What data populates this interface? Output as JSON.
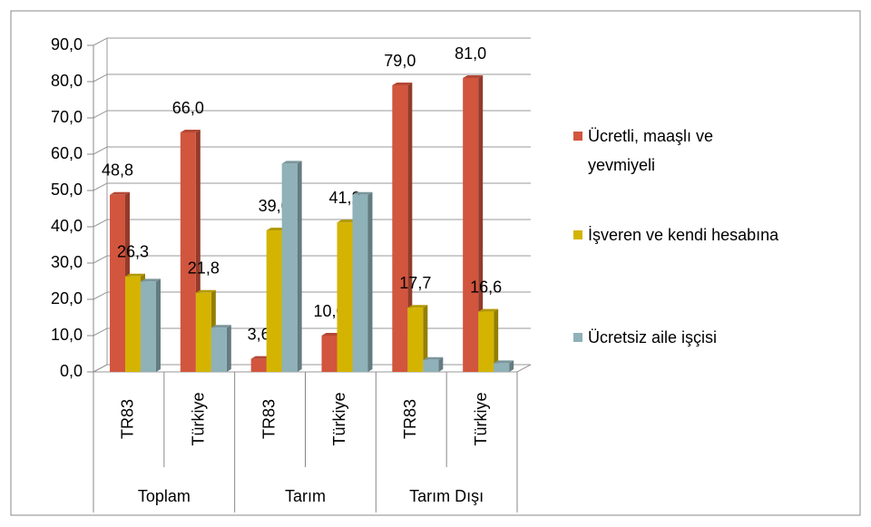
{
  "chart_data": {
    "type": "bar3d",
    "categories": [
      "TR83",
      "Türkiye",
      "TR83",
      "Türkiye",
      "TR83",
      "Türkiye"
    ],
    "groups": [
      "Toplam",
      "Tarım",
      "Tarım Dışı"
    ],
    "series": [
      {
        "name": "Ücretli, maaşlı ve yevmiyeli",
        "color": "#d2553e",
        "values": [
          48.8,
          66.0,
          3.6,
          10.0,
          79.0,
          81.0
        ],
        "value_labels": [
          "48,8",
          "66,0",
          "3,6",
          "10,0",
          "79,0",
          "81,0"
        ]
      },
      {
        "name": "İşveren ve kendi hesabına",
        "color": "#d4b400",
        "values": [
          26.3,
          21.8,
          39.0,
          41.2,
          17.7,
          16.6
        ],
        "value_labels": [
          "26,3",
          "21,8",
          "39,0",
          "41,2",
          "17,7",
          "16,6"
        ]
      },
      {
        "name": "Ücretsiz aile işçisi",
        "color": "#8fb1b8",
        "values": [
          24.9,
          12.2,
          57.4,
          48.8,
          3.3,
          2.4
        ]
      }
    ],
    "ylim": [
      0,
      90
    ],
    "yticks": [
      {
        "value": 0,
        "label": "0,0"
      },
      {
        "value": 10,
        "label": "10,0"
      },
      {
        "value": 20,
        "label": "20,0"
      },
      {
        "value": 30,
        "label": "30,0"
      },
      {
        "value": 40,
        "label": "40,0"
      },
      {
        "value": 50,
        "label": "50,0"
      },
      {
        "value": 60,
        "label": "60,0"
      },
      {
        "value": 70,
        "label": "70,0"
      },
      {
        "value": 80,
        "label": "80,0"
      },
      {
        "value": 90,
        "label": "90,0"
      }
    ],
    "grid": true
  }
}
